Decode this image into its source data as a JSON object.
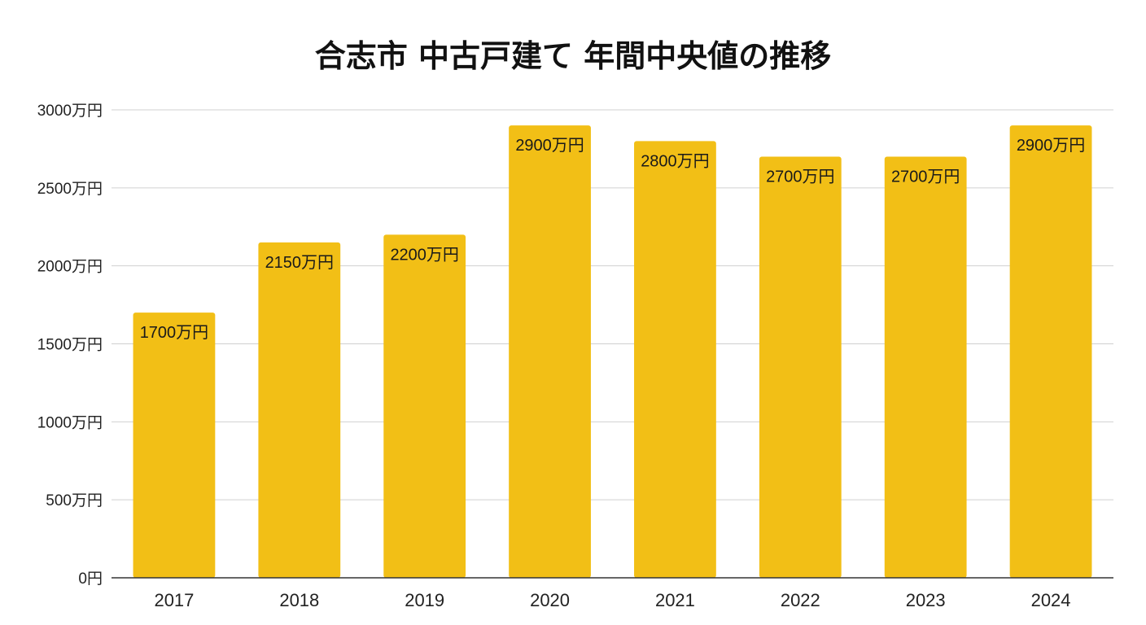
{
  "chart_data": {
    "type": "bar",
    "title": "合志市 中古戸建て 年間中央値の推移",
    "categories": [
      "2017",
      "2018",
      "2019",
      "2020",
      "2021",
      "2022",
      "2023",
      "2024"
    ],
    "values": [
      1700,
      2150,
      2200,
      2900,
      2800,
      2700,
      2700,
      2900
    ],
    "data_labels": [
      "1700万円",
      "2150万円",
      "2200万円",
      "2900万円",
      "2800万円",
      "2700万円",
      "2700万円",
      "2900万円"
    ],
    "ylim": [
      0,
      3000
    ],
    "yticks": [
      0,
      500,
      1000,
      1500,
      2000,
      2500,
      3000
    ],
    "ytick_labels": [
      "0円",
      "500万円",
      "1000万円",
      "1500万円",
      "2000万円",
      "2500万円",
      "3000万円"
    ],
    "xlabel": "",
    "ylabel": "",
    "grid": true,
    "legend": "none",
    "bar_color": "#F2BF16",
    "grid_color": "#d0d0d0",
    "axis_color": "#333333"
  }
}
